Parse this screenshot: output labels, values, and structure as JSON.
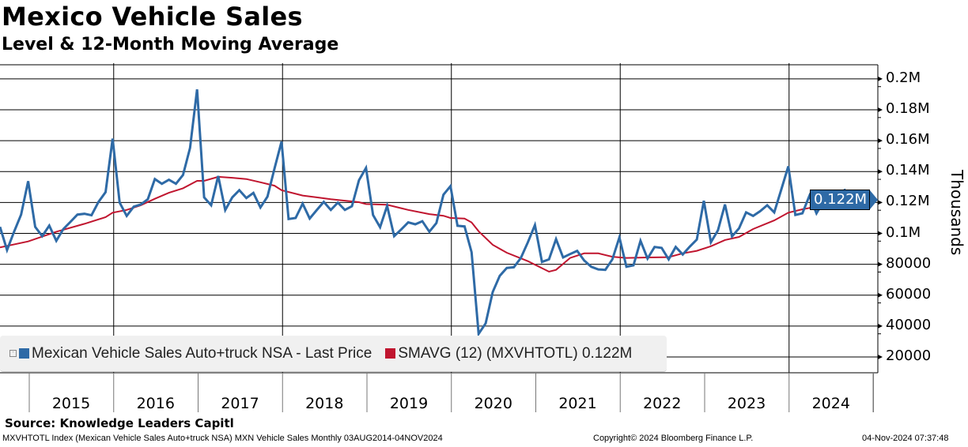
{
  "title": "Mexico Vehicle Sales",
  "subtitle": "Level & 12-Month Moving Average",
  "source": "Source: Knowledge Leaders Capitl",
  "footer": {
    "left": "MXVHTOTL Index (Mexican Vehicle Sales Auto+truck NSA) MXN Vehicle Sales  Monthly 03AUG2014-04NOV2024",
    "center": "Copyright© 2024 Bloomberg Finance L.P.",
    "right": "04-Nov-2024 07:37:48"
  },
  "colors": {
    "series": "#2e6aa6",
    "sma": "#c0152f",
    "legend_bg": "#f0f0f0"
  },
  "chart_data": {
    "type": "line",
    "title": "Mexico Vehicle Sales",
    "subtitle": "Level & 12-Month Moving Average",
    "ylabel": "Thousands",
    "ylim": [
      20,
      200
    ],
    "y_unit": "thousands of vehicles",
    "y_ticks": [
      200,
      180,
      160,
      140,
      120,
      100,
      80,
      60,
      40,
      20
    ],
    "y_tick_labels": [
      "0.2M",
      "0.18M",
      "0.16M",
      "0.14M",
      "0.12M",
      "0.1M",
      "80000",
      "60000",
      "40000",
      "20000"
    ],
    "x_tick_labels": [
      "2015",
      "2016",
      "2017",
      "2018",
      "2019",
      "2020",
      "2021",
      "2022",
      "2023",
      "2024"
    ],
    "x_unit": "month index (monthly, 2014 to Oct 2024)",
    "grid": true,
    "legend_position": "bottom-left",
    "last_value_label": "0.122M",
    "series": [
      {
        "name": "Mexican Vehicle Sales Auto+truck NSA - Last Price",
        "values": [
          104.2,
          89.2,
          101.1,
          112.2,
          133.8,
          104.2,
          98.2,
          105,
          95.2,
          102.8,
          107.4,
          112.2,
          112.7,
          111.7,
          120.4,
          126.7,
          161.3,
          119.9,
          111.3,
          117.3,
          118.7,
          122.1,
          135.2,
          132.1,
          134.7,
          132.1,
          137.8,
          155.3,
          193.2,
          123.3,
          118.2,
          137.2,
          115.1,
          123.3,
          128,
          122.9,
          126.2,
          116.8,
          123.8,
          142,
          159.4,
          109.3,
          110,
          119.3,
          109.6,
          115.1,
          120.4,
          115.2,
          119.9,
          115.2,
          117.6,
          134.4,
          142.4,
          111.9,
          104,
          117.8,
          98.2,
          102.5,
          107.1,
          105.9,
          107.9,
          101.1,
          106.7,
          125,
          130.6,
          104.9,
          104.5,
          87.8,
          35,
          41.8,
          62,
          72.5,
          77.6,
          78.1,
          84.1,
          94.3,
          105.4,
          81.5,
          83.2,
          96.3,
          84.4,
          86.6,
          88.7,
          82.4,
          78.4,
          76.7,
          76.4,
          83.2,
          97.4,
          78.4,
          79.3,
          95.2,
          83.7,
          91.2,
          90.6,
          83.2,
          91.2,
          86.3,
          91.4,
          96,
          121.1,
          94.3,
          102,
          118.7,
          98,
          103.3,
          113.6,
          111.3,
          114.4,
          118.2,
          113.6,
          128.4,
          143.4,
          111.9,
          113,
          124.4,
          113,
          120.7,
          123.3,
          125.5,
          128,
          116.8,
          122.1
        ]
      },
      {
        "name": "SMAVG (12) (MXVHTOTL) 0.122M",
        "points": [
          [
            0,
            90.9
          ],
          [
            4,
            94.8
          ],
          [
            8,
            101.1
          ],
          [
            12,
            106.2
          ],
          [
            15,
            110.5
          ],
          [
            16,
            113.4
          ],
          [
            18,
            115.2
          ],
          [
            20,
            118.2
          ],
          [
            22,
            122.4
          ],
          [
            24,
            126.3
          ],
          [
            26,
            129.2
          ],
          [
            28,
            134
          ],
          [
            29,
            134
          ],
          [
            31,
            136.6
          ],
          [
            33,
            136
          ],
          [
            35,
            135.2
          ],
          [
            37,
            133.1
          ],
          [
            39,
            130.9
          ],
          [
            40,
            128
          ],
          [
            43,
            124.5
          ],
          [
            45,
            123.3
          ],
          [
            47,
            122.1
          ],
          [
            49,
            121.2
          ],
          [
            51,
            120.2
          ],
          [
            52,
            119
          ],
          [
            55,
            118.5
          ],
          [
            58,
            115.2
          ],
          [
            61,
            112.5
          ],
          [
            63,
            111.4
          ],
          [
            64,
            110
          ],
          [
            66,
            109.6
          ],
          [
            67,
            107.1
          ],
          [
            68,
            101.4
          ],
          [
            70,
            92.6
          ],
          [
            72,
            87.5
          ],
          [
            75,
            82
          ],
          [
            78,
            75.2
          ],
          [
            79,
            76.4
          ],
          [
            81,
            84.1
          ],
          [
            83,
            87.1
          ],
          [
            85,
            87.1
          ],
          [
            87,
            84.9
          ],
          [
            89,
            84.1
          ],
          [
            92,
            84.4
          ],
          [
            95,
            84.6
          ],
          [
            97,
            87.1
          ],
          [
            99,
            88.7
          ],
          [
            101,
            91.7
          ],
          [
            103,
            95.7
          ],
          [
            105,
            97.7
          ],
          [
            107,
            102.8
          ],
          [
            110,
            108.4
          ],
          [
            112,
            113.4
          ],
          [
            114,
            115.6
          ],
          [
            116,
            117.3
          ],
          [
            117,
            119
          ],
          [
            119,
            120.7
          ],
          [
            120,
            121.9
          ],
          [
            122,
            122.1
          ]
        ]
      }
    ]
  }
}
